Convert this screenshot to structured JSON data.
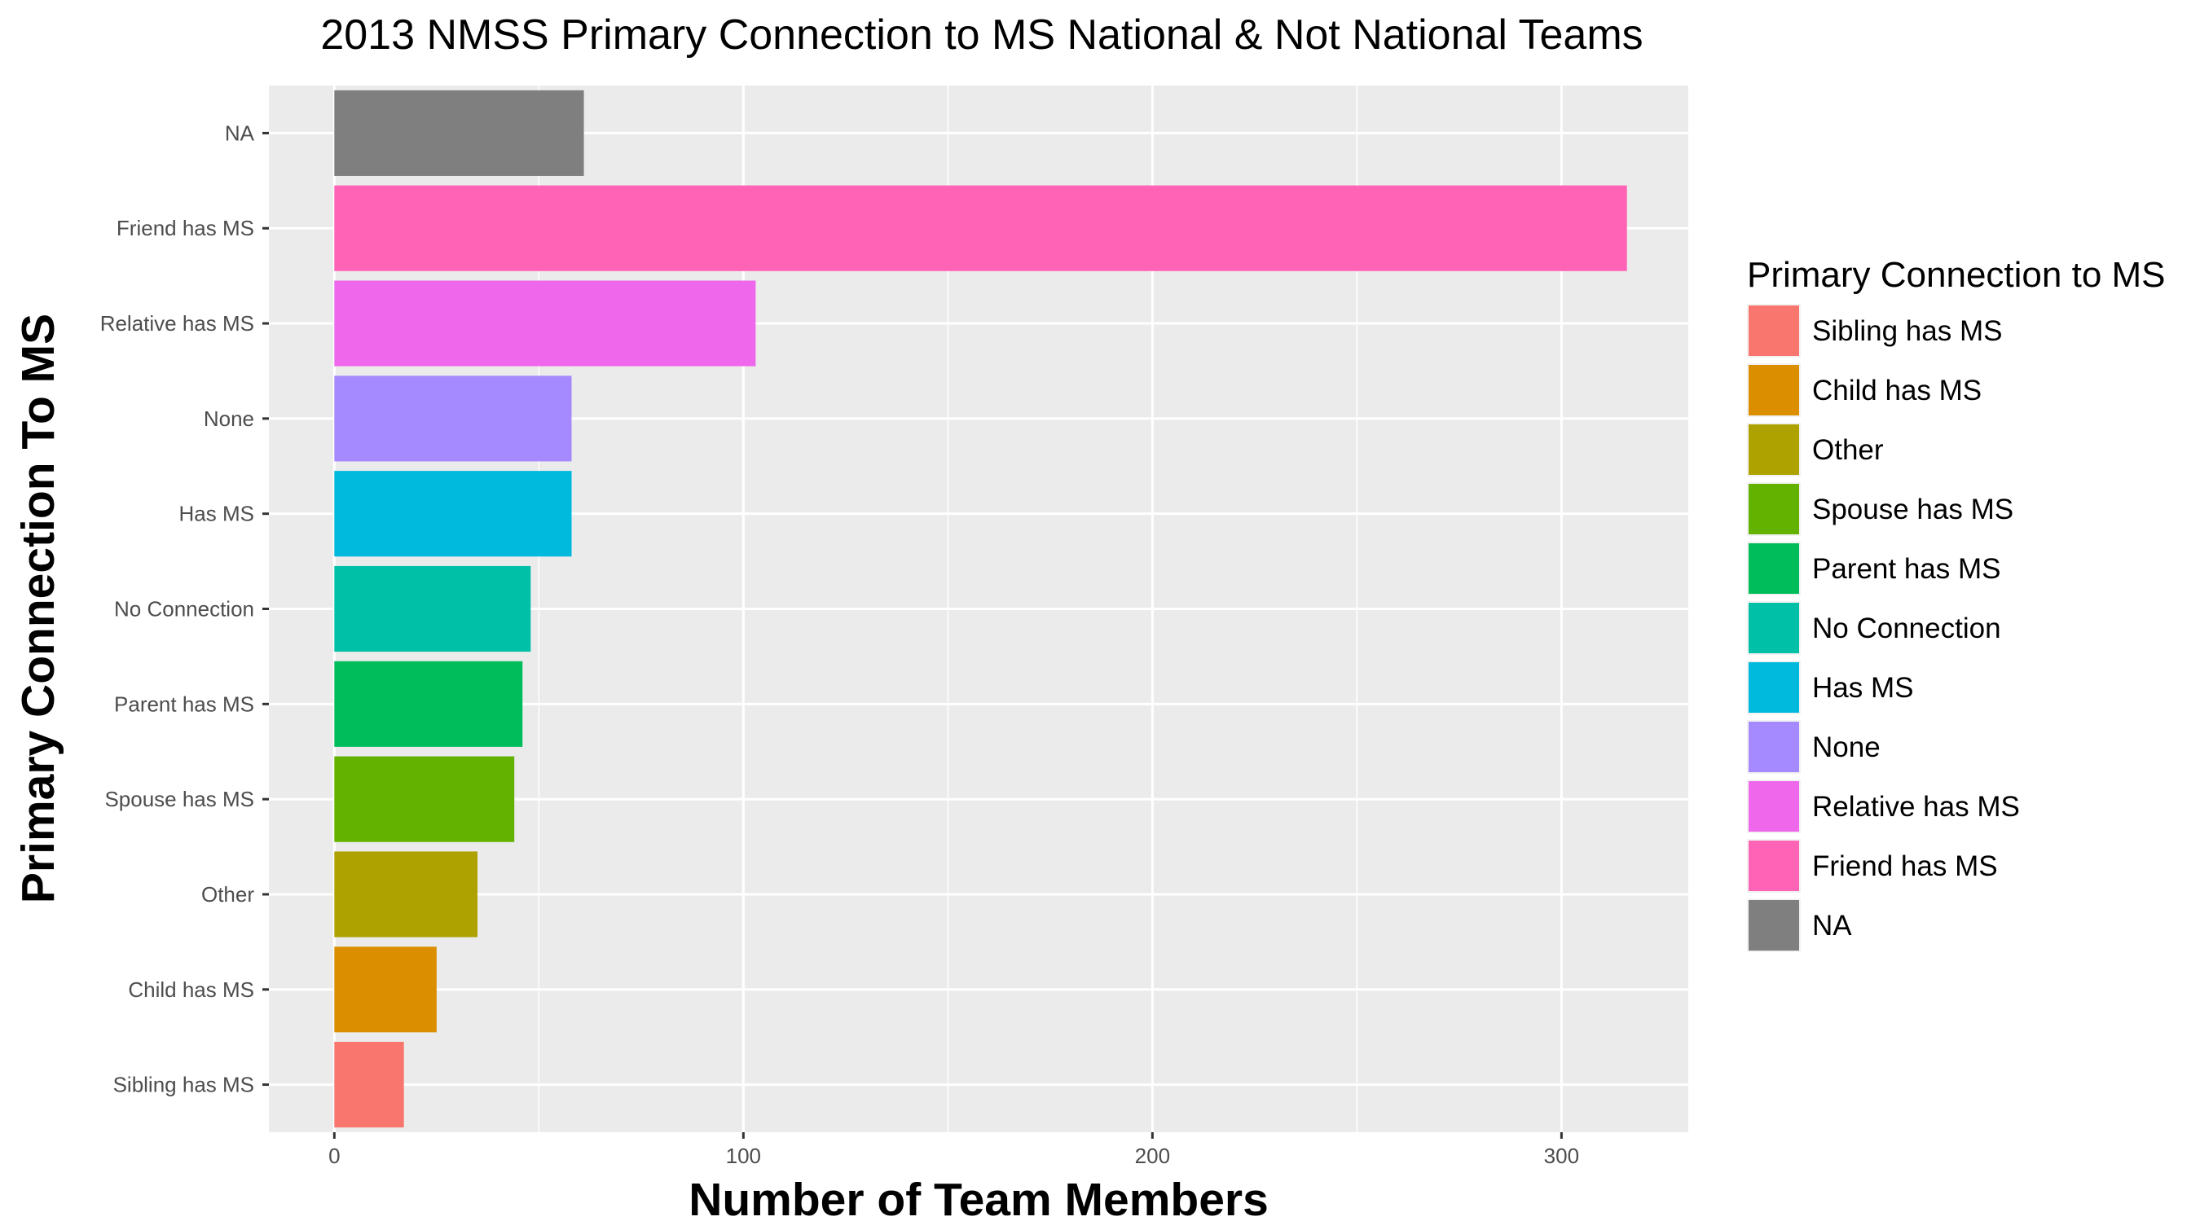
{
  "chart_data": {
    "type": "bar",
    "orientation": "horizontal",
    "title": "2013 NMSS Primary Connection to MS National & Not National Teams",
    "xlabel": "Number of Team Members",
    "ylabel": "Primary Connection To MS",
    "xlim": [
      -16,
      331
    ],
    "xticks": [
      0,
      100,
      200,
      300
    ],
    "grid": true,
    "categories": [
      "Sibling has MS",
      "Child has MS",
      "Other",
      "Spouse has MS",
      "Parent has MS",
      "No Connection",
      "Has MS",
      "None",
      "Relative has MS",
      "Friend has MS",
      "NA"
    ],
    "values": [
      17,
      25,
      35,
      44,
      46,
      48,
      58,
      58,
      103,
      316,
      61
    ],
    "colors": [
      "#F8766D",
      "#DB8E00",
      "#AEA200",
      "#64B200",
      "#00BD5C",
      "#00C1A7",
      "#00BADE",
      "#A58AFF",
      "#EF67EB",
      "#FF63B6",
      "#7F7F7F"
    ],
    "legend": {
      "title": "Primary Connection to MS",
      "placement": "right",
      "entries": [
        "Sibling has MS",
        "Child has MS",
        "Other",
        "Spouse has MS",
        "Parent has MS",
        "No Connection",
        "Has MS",
        "None",
        "Relative has MS",
        "Friend has MS",
        "NA"
      ]
    }
  }
}
